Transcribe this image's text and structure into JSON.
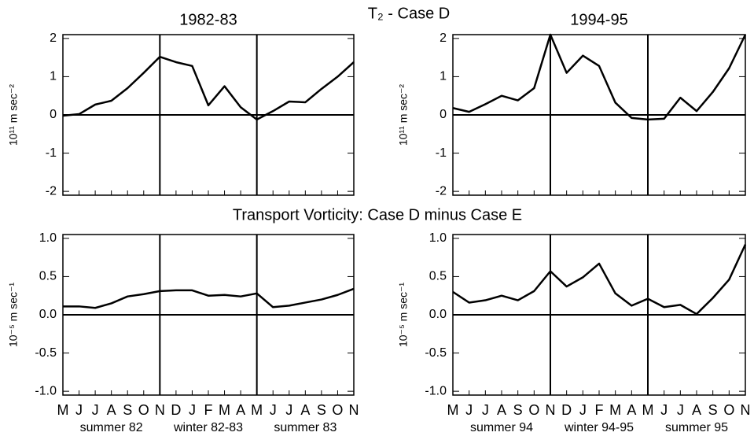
{
  "title": "T₂ - Case D",
  "subtitle": "Transport Vorticity: Case D minus Case E",
  "chart_data": [
    {
      "type": "line",
      "title": "1982-83",
      "y_label": "10¹¹ m sec⁻²",
      "categories": [
        null,
        null,
        null,
        null,
        null,
        null,
        null,
        null,
        null,
        null,
        null,
        null,
        null,
        null,
        null,
        null,
        null,
        null,
        null
      ],
      "values": [
        -0.02,
        0.02,
        0.27,
        0.37,
        0.7,
        1.1,
        1.52,
        1.38,
        1.28,
        0.25,
        0.75,
        0.2,
        -0.12,
        0.1,
        0.35,
        0.33,
        0.68,
        1.0,
        1.38
      ],
      "color": "#000000",
      "ylim": [
        -2.1,
        2.1
      ],
      "yticks": [
        -2,
        -1,
        0,
        1,
        2
      ]
    },
    {
      "type": "line",
      "title": "1994-95",
      "y_label": "10¹¹ m sec⁻²",
      "categories": [
        null,
        null,
        null,
        null,
        null,
        null,
        null,
        null,
        null,
        null,
        null,
        null,
        null,
        null,
        null,
        null,
        null,
        null,
        null
      ],
      "values": [
        0.18,
        0.08,
        0.28,
        0.5,
        0.38,
        0.7,
        2.1,
        1.1,
        1.55,
        1.28,
        0.32,
        -0.08,
        -0.12,
        -0.1,
        0.45,
        0.1,
        0.6,
        1.22,
        2.1
      ],
      "color": "#000000",
      "ylim": [
        -2.1,
        2.1
      ],
      "yticks": [
        -2,
        -1,
        0,
        1,
        2
      ]
    },
    {
      "type": "line",
      "y_label": "10⁻⁵ m sec⁻¹",
      "categories": [
        "M",
        "J",
        "J",
        "A",
        "S",
        "O",
        "N",
        "D",
        "J",
        "F",
        "M",
        "A",
        "M",
        "J",
        "J",
        "A",
        "S",
        "O",
        "N"
      ],
      "xlabels": [
        "summer 82",
        "winter 82-83",
        "summer 83"
      ],
      "values": [
        0.11,
        0.11,
        0.09,
        0.15,
        0.24,
        0.27,
        0.31,
        0.32,
        0.32,
        0.25,
        0.26,
        0.24,
        0.28,
        0.1,
        0.12,
        0.16,
        0.2,
        0.26,
        0.34
      ],
      "color": "#000000",
      "ylim": [
        -1.05,
        1.05
      ],
      "yticks": [
        {
          "value": -1,
          "label": "-1.0"
        },
        {
          "value": -0.5,
          "label": "-0.5"
        },
        {
          "value": 0,
          "label": "0.0"
        },
        {
          "value": 0.5,
          "label": "0.5"
        },
        {
          "value": 1,
          "label": "1.0"
        }
      ]
    },
    {
      "type": "line",
      "y_label": "10⁻⁵ m sec⁻¹",
      "categories": [
        "M",
        "J",
        "J",
        "A",
        "S",
        "O",
        "N",
        "D",
        "J",
        "F",
        "M",
        "A",
        "M",
        "J",
        "J",
        "A",
        "S",
        "O",
        "N"
      ],
      "xlabels": [
        "summer 94",
        "winter 94-95",
        "summer 95"
      ],
      "values": [
        0.3,
        0.16,
        0.19,
        0.25,
        0.19,
        0.31,
        0.57,
        0.37,
        0.49,
        0.67,
        0.28,
        0.12,
        0.21,
        0.1,
        0.13,
        0.01,
        0.22,
        0.46,
        0.92
      ],
      "color": "#000000",
      "ylim": [
        -1.05,
        1.05
      ],
      "yticks": [
        {
          "value": -1,
          "label": "-1.0"
        },
        {
          "value": -0.5,
          "label": "-0.5"
        },
        {
          "value": 0,
          "label": "0.0"
        },
        {
          "value": 0.5,
          "label": "0.5"
        },
        {
          "value": 1,
          "label": "1.0"
        }
      ]
    }
  ]
}
